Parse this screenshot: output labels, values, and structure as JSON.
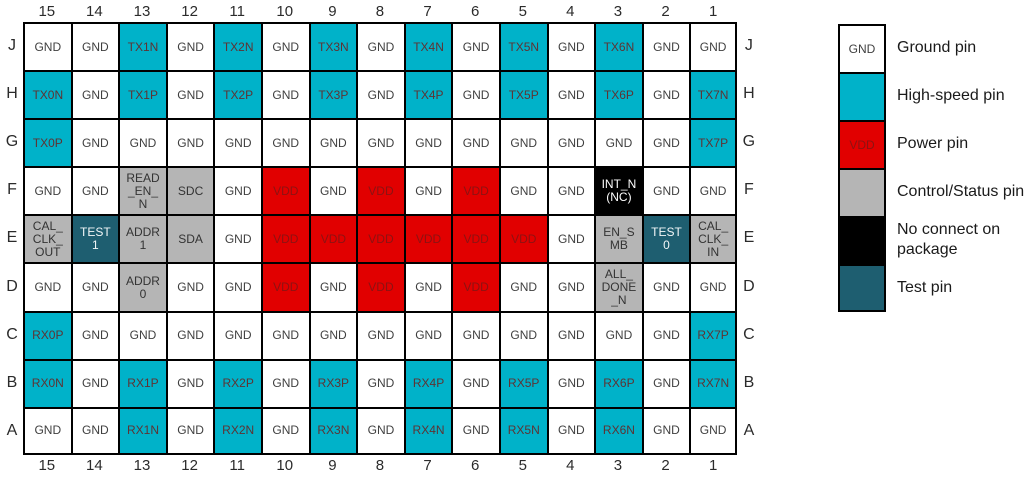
{
  "pin_map": {
    "column_labels": [
      "15",
      "14",
      "13",
      "12",
      "11",
      "10",
      "9",
      "8",
      "7",
      "6",
      "5",
      "4",
      "3",
      "2",
      "1"
    ],
    "row_labels": [
      "J",
      "H",
      "G",
      "F",
      "E",
      "D",
      "C",
      "B",
      "A"
    ],
    "rows": [
      {
        "row": "J",
        "cells": [
          {
            "label": "GND",
            "type": "gnd"
          },
          {
            "label": "GND",
            "type": "gnd"
          },
          {
            "label": "TX1N",
            "type": "hs"
          },
          {
            "label": "GND",
            "type": "gnd"
          },
          {
            "label": "TX2N",
            "type": "hs"
          },
          {
            "label": "GND",
            "type": "gnd"
          },
          {
            "label": "TX3N",
            "type": "hs"
          },
          {
            "label": "GND",
            "type": "gnd"
          },
          {
            "label": "TX4N",
            "type": "hs"
          },
          {
            "label": "GND",
            "type": "gnd"
          },
          {
            "label": "TX5N",
            "type": "hs"
          },
          {
            "label": "GND",
            "type": "gnd"
          },
          {
            "label": "TX6N",
            "type": "hs"
          },
          {
            "label": "GND",
            "type": "gnd"
          },
          {
            "label": "GND",
            "type": "gnd"
          }
        ]
      },
      {
        "row": "H",
        "cells": [
          {
            "label": "TX0N",
            "type": "hs"
          },
          {
            "label": "GND",
            "type": "gnd"
          },
          {
            "label": "TX1P",
            "type": "hs"
          },
          {
            "label": "GND",
            "type": "gnd"
          },
          {
            "label": "TX2P",
            "type": "hs"
          },
          {
            "label": "GND",
            "type": "gnd"
          },
          {
            "label": "TX3P",
            "type": "hs"
          },
          {
            "label": "GND",
            "type": "gnd"
          },
          {
            "label": "TX4P",
            "type": "hs"
          },
          {
            "label": "GND",
            "type": "gnd"
          },
          {
            "label": "TX5P",
            "type": "hs"
          },
          {
            "label": "GND",
            "type": "gnd"
          },
          {
            "label": "TX6P",
            "type": "hs"
          },
          {
            "label": "GND",
            "type": "gnd"
          },
          {
            "label": "TX7N",
            "type": "hs"
          }
        ]
      },
      {
        "row": "G",
        "cells": [
          {
            "label": "TX0P",
            "type": "hs"
          },
          {
            "label": "GND",
            "type": "gnd"
          },
          {
            "label": "GND",
            "type": "gnd"
          },
          {
            "label": "GND",
            "type": "gnd"
          },
          {
            "label": "GND",
            "type": "gnd"
          },
          {
            "label": "GND",
            "type": "gnd"
          },
          {
            "label": "GND",
            "type": "gnd"
          },
          {
            "label": "GND",
            "type": "gnd"
          },
          {
            "label": "GND",
            "type": "gnd"
          },
          {
            "label": "GND",
            "type": "gnd"
          },
          {
            "label": "GND",
            "type": "gnd"
          },
          {
            "label": "GND",
            "type": "gnd"
          },
          {
            "label": "GND",
            "type": "gnd"
          },
          {
            "label": "GND",
            "type": "gnd"
          },
          {
            "label": "TX7P",
            "type": "hs"
          }
        ]
      },
      {
        "row": "F",
        "cells": [
          {
            "label": "GND",
            "type": "gnd"
          },
          {
            "label": "GND",
            "type": "gnd"
          },
          {
            "label": "READ\n_EN_\nN",
            "type": "ctrl"
          },
          {
            "label": "SDC",
            "type": "ctrl"
          },
          {
            "label": "GND",
            "type": "gnd"
          },
          {
            "label": "VDD",
            "type": "pwr"
          },
          {
            "label": "GND",
            "type": "gnd"
          },
          {
            "label": "VDD",
            "type": "pwr"
          },
          {
            "label": "GND",
            "type": "gnd"
          },
          {
            "label": "VDD",
            "type": "pwr"
          },
          {
            "label": "GND",
            "type": "gnd"
          },
          {
            "label": "GND",
            "type": "gnd"
          },
          {
            "label": "INT_N\n(NC)",
            "type": "nc"
          },
          {
            "label": "GND",
            "type": "gnd"
          },
          {
            "label": "GND",
            "type": "gnd"
          }
        ]
      },
      {
        "row": "E",
        "cells": [
          {
            "label": "CAL_\nCLK_\nOUT",
            "type": "ctrl"
          },
          {
            "label": "TEST\n1",
            "type": "test"
          },
          {
            "label": "ADDR\n1",
            "type": "ctrl"
          },
          {
            "label": "SDA",
            "type": "ctrl"
          },
          {
            "label": "GND",
            "type": "gnd"
          },
          {
            "label": "VDD",
            "type": "pwr"
          },
          {
            "label": "VDD",
            "type": "pwr"
          },
          {
            "label": "VDD",
            "type": "pwr"
          },
          {
            "label": "VDD",
            "type": "pwr"
          },
          {
            "label": "VDD",
            "type": "pwr"
          },
          {
            "label": "VDD",
            "type": "pwr"
          },
          {
            "label": "GND",
            "type": "gnd"
          },
          {
            "label": "EN_S\nMB",
            "type": "ctrl"
          },
          {
            "label": "TEST\n0",
            "type": "test"
          },
          {
            "label": "CAL_\nCLK_\nIN",
            "type": "ctrl"
          }
        ]
      },
      {
        "row": "D",
        "cells": [
          {
            "label": "GND",
            "type": "gnd"
          },
          {
            "label": "GND",
            "type": "gnd"
          },
          {
            "label": "ADDR\n0",
            "type": "ctrl"
          },
          {
            "label": "GND",
            "type": "gnd"
          },
          {
            "label": "GND",
            "type": "gnd"
          },
          {
            "label": "VDD",
            "type": "pwr"
          },
          {
            "label": "GND",
            "type": "gnd"
          },
          {
            "label": "VDD",
            "type": "pwr"
          },
          {
            "label": "GND",
            "type": "gnd"
          },
          {
            "label": "VDD",
            "type": "pwr"
          },
          {
            "label": "GND",
            "type": "gnd"
          },
          {
            "label": "GND",
            "type": "gnd"
          },
          {
            "label": "ALL_\nDONE\n_N",
            "type": "ctrl"
          },
          {
            "label": "GND",
            "type": "gnd"
          },
          {
            "label": "GND",
            "type": "gnd"
          }
        ]
      },
      {
        "row": "C",
        "cells": [
          {
            "label": "RX0P",
            "type": "hs"
          },
          {
            "label": "GND",
            "type": "gnd"
          },
          {
            "label": "GND",
            "type": "gnd"
          },
          {
            "label": "GND",
            "type": "gnd"
          },
          {
            "label": "GND",
            "type": "gnd"
          },
          {
            "label": "GND",
            "type": "gnd"
          },
          {
            "label": "GND",
            "type": "gnd"
          },
          {
            "label": "GND",
            "type": "gnd"
          },
          {
            "label": "GND",
            "type": "gnd"
          },
          {
            "label": "GND",
            "type": "gnd"
          },
          {
            "label": "GND",
            "type": "gnd"
          },
          {
            "label": "GND",
            "type": "gnd"
          },
          {
            "label": "GND",
            "type": "gnd"
          },
          {
            "label": "GND",
            "type": "gnd"
          },
          {
            "label": "RX7P",
            "type": "hs"
          }
        ]
      },
      {
        "row": "B",
        "cells": [
          {
            "label": "RX0N",
            "type": "hs"
          },
          {
            "label": "GND",
            "type": "gnd"
          },
          {
            "label": "RX1P",
            "type": "hs"
          },
          {
            "label": "GND",
            "type": "gnd"
          },
          {
            "label": "RX2P",
            "type": "hs"
          },
          {
            "label": "GND",
            "type": "gnd"
          },
          {
            "label": "RX3P",
            "type": "hs"
          },
          {
            "label": "GND",
            "type": "gnd"
          },
          {
            "label": "RX4P",
            "type": "hs"
          },
          {
            "label": "GND",
            "type": "gnd"
          },
          {
            "label": "RX5P",
            "type": "hs"
          },
          {
            "label": "GND",
            "type": "gnd"
          },
          {
            "label": "RX6P",
            "type": "hs"
          },
          {
            "label": "GND",
            "type": "gnd"
          },
          {
            "label": "RX7N",
            "type": "hs"
          }
        ]
      },
      {
        "row": "A",
        "cells": [
          {
            "label": "GND",
            "type": "gnd"
          },
          {
            "label": "GND",
            "type": "gnd"
          },
          {
            "label": "RX1N",
            "type": "hs"
          },
          {
            "label": "GND",
            "type": "gnd"
          },
          {
            "label": "RX2N",
            "type": "hs"
          },
          {
            "label": "GND",
            "type": "gnd"
          },
          {
            "label": "RX3N",
            "type": "hs"
          },
          {
            "label": "GND",
            "type": "gnd"
          },
          {
            "label": "RX4N",
            "type": "hs"
          },
          {
            "label": "GND",
            "type": "gnd"
          },
          {
            "label": "RX5N",
            "type": "hs"
          },
          {
            "label": "GND",
            "type": "gnd"
          },
          {
            "label": "RX6N",
            "type": "hs"
          },
          {
            "label": "GND",
            "type": "gnd"
          },
          {
            "label": "GND",
            "type": "gnd"
          }
        ]
      }
    ]
  },
  "legend": {
    "items": [
      {
        "swatch_label": "GND",
        "type": "gnd",
        "label": "Ground pin"
      },
      {
        "swatch_label": "",
        "type": "hs",
        "label": "High-speed pin"
      },
      {
        "swatch_label": "VDD",
        "type": "pwr",
        "label": "Power pin"
      },
      {
        "swatch_label": "",
        "type": "ctrl",
        "label": "Control/Status pin"
      },
      {
        "swatch_label": "",
        "type": "nc",
        "label": "No connect on package"
      },
      {
        "swatch_label": "",
        "type": "test",
        "label": "Test pin"
      }
    ]
  },
  "colors": {
    "gnd_bg": "#ffffff",
    "gnd_text": "#3f3f3f",
    "hs_bg": "#00b2c9",
    "hs_text": "#5e3333",
    "pwr_bg": "#e10000",
    "pwr_text": "#8c1212",
    "ctrl_bg": "#b5b5b5",
    "ctrl_text": "#333333",
    "nc_bg": "#000000",
    "nc_text": "#ffffff",
    "test_bg": "#1e5e70",
    "test_text": "#f2f6f7",
    "border": "#000000",
    "header_text": "#2b2b2b",
    "legend_text": "#1a1a1a"
  }
}
